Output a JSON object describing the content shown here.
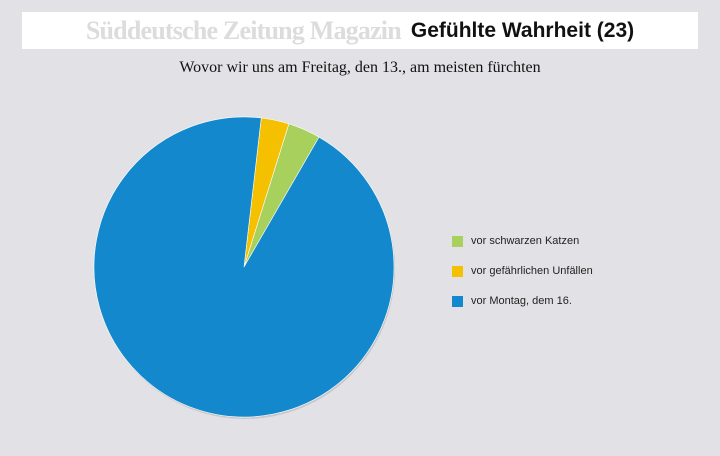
{
  "header": {
    "brand": "Süddeutsche Zeitung Magazin",
    "series_title": "Gefühlte Wahrheit (23)"
  },
  "chart_data": {
    "type": "pie",
    "title": "Wovor wir uns am Freitag, den 13., am meisten fürchten",
    "start_angle_deg": 60,
    "slices": [
      {
        "label": "vor schwarzen Katzen",
        "value": 3.5,
        "color": "#a8d05c"
      },
      {
        "label": "vor gefährlichen Unfällen",
        "value": 3.0,
        "color": "#f5c000"
      },
      {
        "label": "vor Montag, dem 16.",
        "value": 93.5,
        "color": "#1488cc"
      }
    ],
    "legend_position": "right"
  }
}
